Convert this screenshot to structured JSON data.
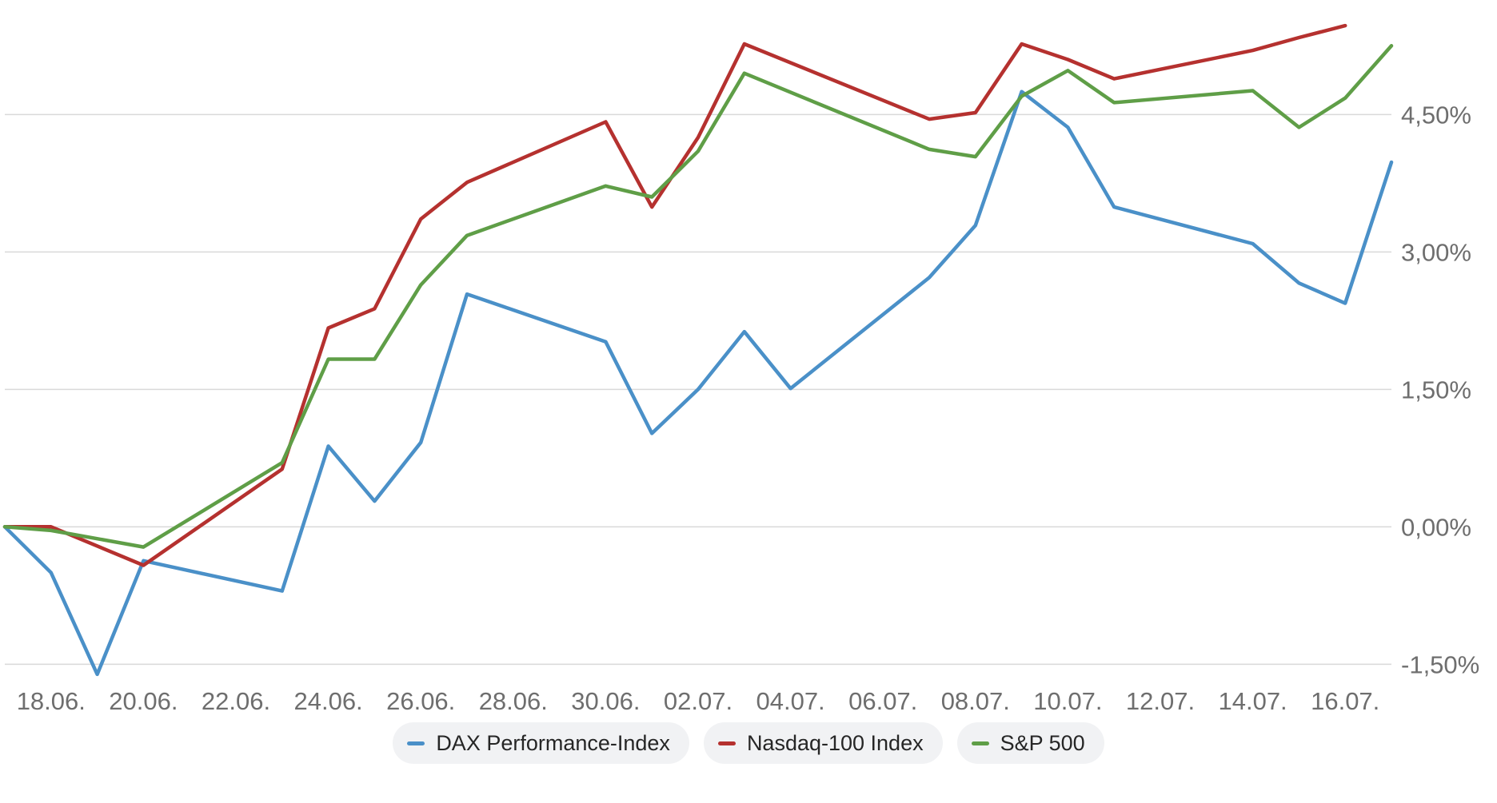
{
  "chart_data": {
    "type": "line",
    "title": "",
    "xlabel": "",
    "ylabel": "",
    "y_axis_side": "right",
    "ylim": [
      -1.75,
      5.75
    ],
    "yticks": [
      -1.5,
      0,
      1.5,
      3.0,
      4.5
    ],
    "ytick_labels": [
      "-1,50%",
      "0,00%",
      "1,50%",
      "3,00%",
      "4,50%"
    ],
    "xlim": [
      "2024-06-17",
      "2024-07-17"
    ],
    "xtick_dates": [
      "2024-06-18",
      "2024-06-20",
      "2024-06-22",
      "2024-06-24",
      "2024-06-26",
      "2024-06-28",
      "2024-06-30",
      "2024-07-02",
      "2024-07-04",
      "2024-07-06",
      "2024-07-08",
      "2024-07-10",
      "2024-07-12",
      "2024-07-14",
      "2024-07-16"
    ],
    "xtick_labels": [
      "18.06.",
      "20.06.",
      "22.06.",
      "24.06.",
      "26.06.",
      "28.06.",
      "30.06.",
      "02.07.",
      "04.07.",
      "06.07.",
      "08.07.",
      "10.07.",
      "12.07.",
      "14.07.",
      "16.07."
    ],
    "grid": true,
    "legend_position": "bottom-center",
    "series": [
      {
        "name": "DAX Performance-Index",
        "color": "#4a90c8",
        "points": [
          [
            "2024-06-17",
            0.0
          ],
          [
            "2024-06-18",
            -0.5
          ],
          [
            "2024-06-19",
            -1.61
          ],
          [
            "2024-06-20",
            -0.37
          ],
          [
            "2024-06-23",
            -0.7
          ],
          [
            "2024-06-24",
            0.88
          ],
          [
            "2024-06-25",
            0.28
          ],
          [
            "2024-06-26",
            0.92
          ],
          [
            "2024-06-27",
            2.54
          ],
          [
            "2024-06-30",
            2.02
          ],
          [
            "2024-07-01",
            1.02
          ],
          [
            "2024-07-02",
            1.5
          ],
          [
            "2024-07-03",
            2.13
          ],
          [
            "2024-07-04",
            1.51
          ],
          [
            "2024-07-07",
            2.72
          ],
          [
            "2024-07-08",
            3.29
          ],
          [
            "2024-07-09",
            4.75
          ],
          [
            "2024-07-10",
            4.36
          ],
          [
            "2024-07-11",
            3.49
          ],
          [
            "2024-07-14",
            3.09
          ],
          [
            "2024-07-15",
            2.66
          ],
          [
            "2024-07-16",
            2.44
          ],
          [
            "2024-07-17",
            3.98
          ]
        ]
      },
      {
        "name": "Nasdaq-100 Index",
        "color": "#b5312f",
        "points": [
          [
            "2024-06-17",
            0.0
          ],
          [
            "2024-06-18",
            0.0
          ],
          [
            "2024-06-20",
            -0.42
          ],
          [
            "2024-06-23",
            0.63
          ],
          [
            "2024-06-24",
            2.17
          ],
          [
            "2024-06-25",
            2.38
          ],
          [
            "2024-06-26",
            3.36
          ],
          [
            "2024-06-27",
            3.76
          ],
          [
            "2024-06-30",
            4.42
          ],
          [
            "2024-07-01",
            3.49
          ],
          [
            "2024-07-02",
            4.25
          ],
          [
            "2024-07-03",
            5.27
          ],
          [
            "2024-07-07",
            4.45
          ],
          [
            "2024-07-08",
            4.52
          ],
          [
            "2024-07-09",
            5.27
          ],
          [
            "2024-07-10",
            5.1
          ],
          [
            "2024-07-11",
            4.89
          ],
          [
            "2024-07-14",
            5.2
          ],
          [
            "2024-07-15",
            5.34
          ],
          [
            "2024-07-16",
            5.47
          ]
        ]
      },
      {
        "name": "S&P 500",
        "color": "#5f9e47",
        "points": [
          [
            "2024-06-17",
            0.0
          ],
          [
            "2024-06-18",
            -0.04
          ],
          [
            "2024-06-20",
            -0.22
          ],
          [
            "2024-06-23",
            0.7
          ],
          [
            "2024-06-24",
            1.83
          ],
          [
            "2024-06-25",
            1.83
          ],
          [
            "2024-06-26",
            2.64
          ],
          [
            "2024-06-27",
            3.18
          ],
          [
            "2024-06-30",
            3.72
          ],
          [
            "2024-07-01",
            3.6
          ],
          [
            "2024-07-02",
            4.1
          ],
          [
            "2024-07-03",
            4.95
          ],
          [
            "2024-07-07",
            4.12
          ],
          [
            "2024-07-08",
            4.04
          ],
          [
            "2024-07-09",
            4.7
          ],
          [
            "2024-07-10",
            4.98
          ],
          [
            "2024-07-11",
            4.63
          ],
          [
            "2024-07-14",
            4.76
          ],
          [
            "2024-07-15",
            4.36
          ],
          [
            "2024-07-16",
            4.68
          ],
          [
            "2024-07-17",
            5.25
          ]
        ]
      }
    ]
  }
}
